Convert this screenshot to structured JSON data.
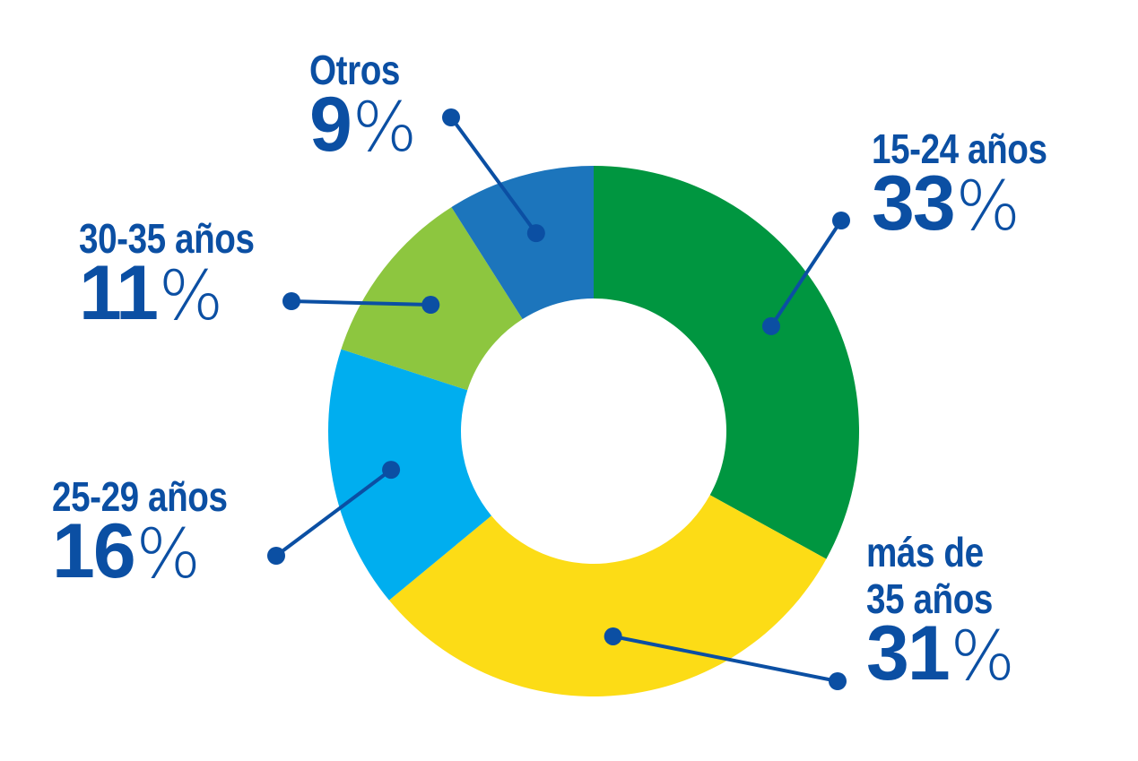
{
  "chart_data": {
    "type": "pie",
    "categories": [
      "15-24 años",
      "más de 35 años",
      "25-29 años",
      "30-35 años",
      "Otros"
    ],
    "values": [
      33,
      31,
      16,
      11,
      9
    ],
    "value_labels": [
      "33",
      "31",
      "16",
      "11",
      "9"
    ],
    "unit": "%",
    "title": "",
    "colors": [
      "#009640",
      "#fcdc16",
      "#00aeef",
      "#8dc63f",
      "#1c75bc"
    ],
    "label_color": "#0b4fa3",
    "leader_color": "#0b4fa3",
    "legend": "none"
  }
}
